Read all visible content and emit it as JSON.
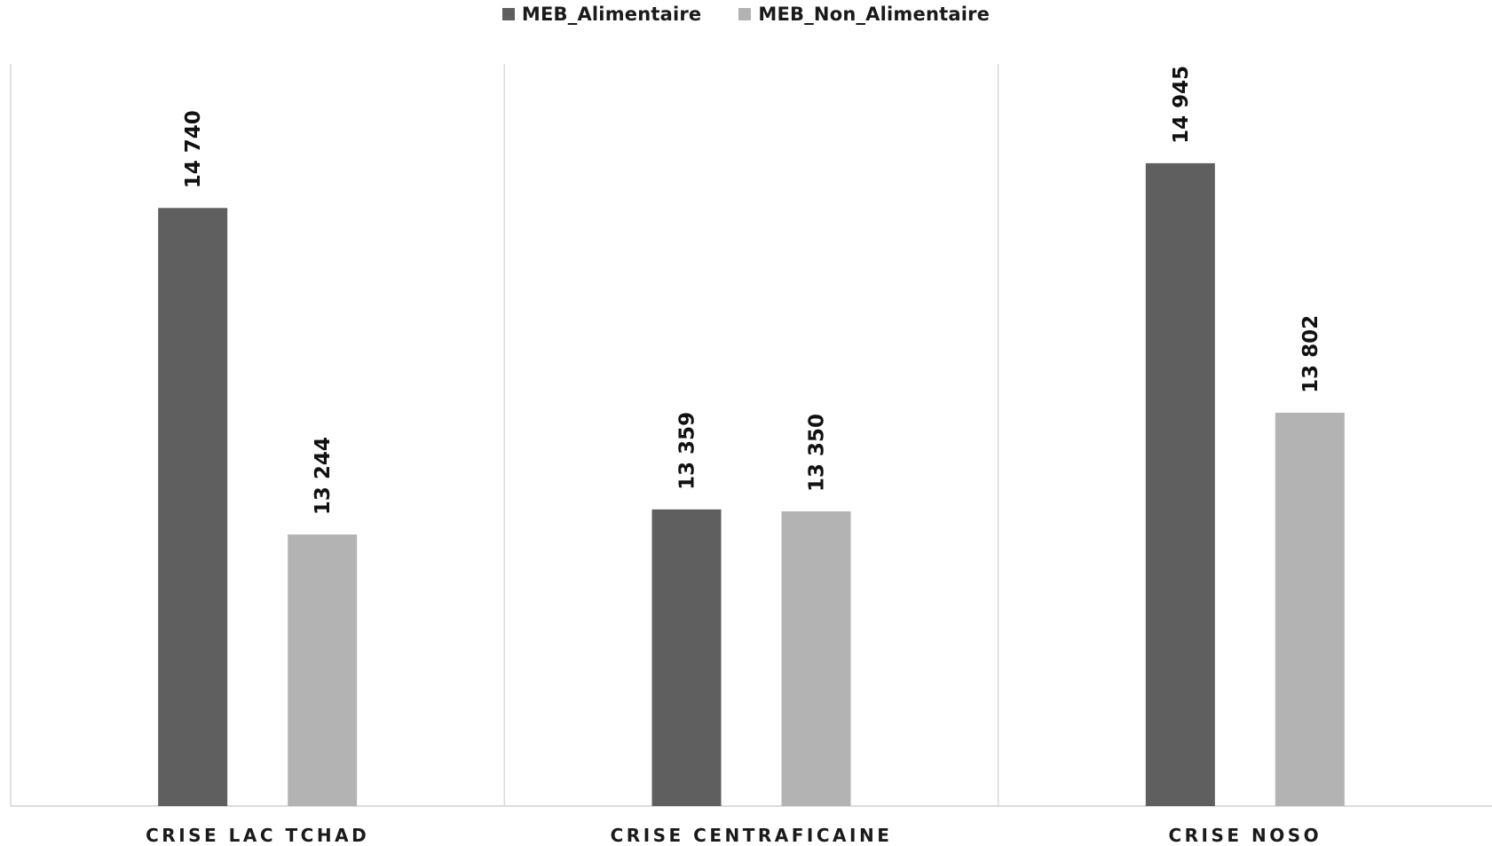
{
  "chart_data": {
    "type": "bar",
    "categories": [
      "CRISE LAC TCHAD",
      "CRISE CENTRAFICAINE",
      "CRISE NOSO"
    ],
    "series": [
      {
        "name": "MEB_Alimentaire",
        "values": [
          14740,
          13359,
          14945
        ],
        "labels": [
          "14 740",
          "13 359",
          "14 945"
        ],
        "color": "#5f5f5f"
      },
      {
        "name": "MEB_Non_Alimentaire",
        "values": [
          13244,
          13350,
          13802
        ],
        "labels": [
          "13 244",
          "13 350",
          "13 802"
        ],
        "color": "#b3b3b3"
      }
    ],
    "ylim": [
      12000,
      15400
    ],
    "grid": false,
    "legend_position": "top-center",
    "title": "",
    "xlabel": "",
    "ylabel": ""
  }
}
